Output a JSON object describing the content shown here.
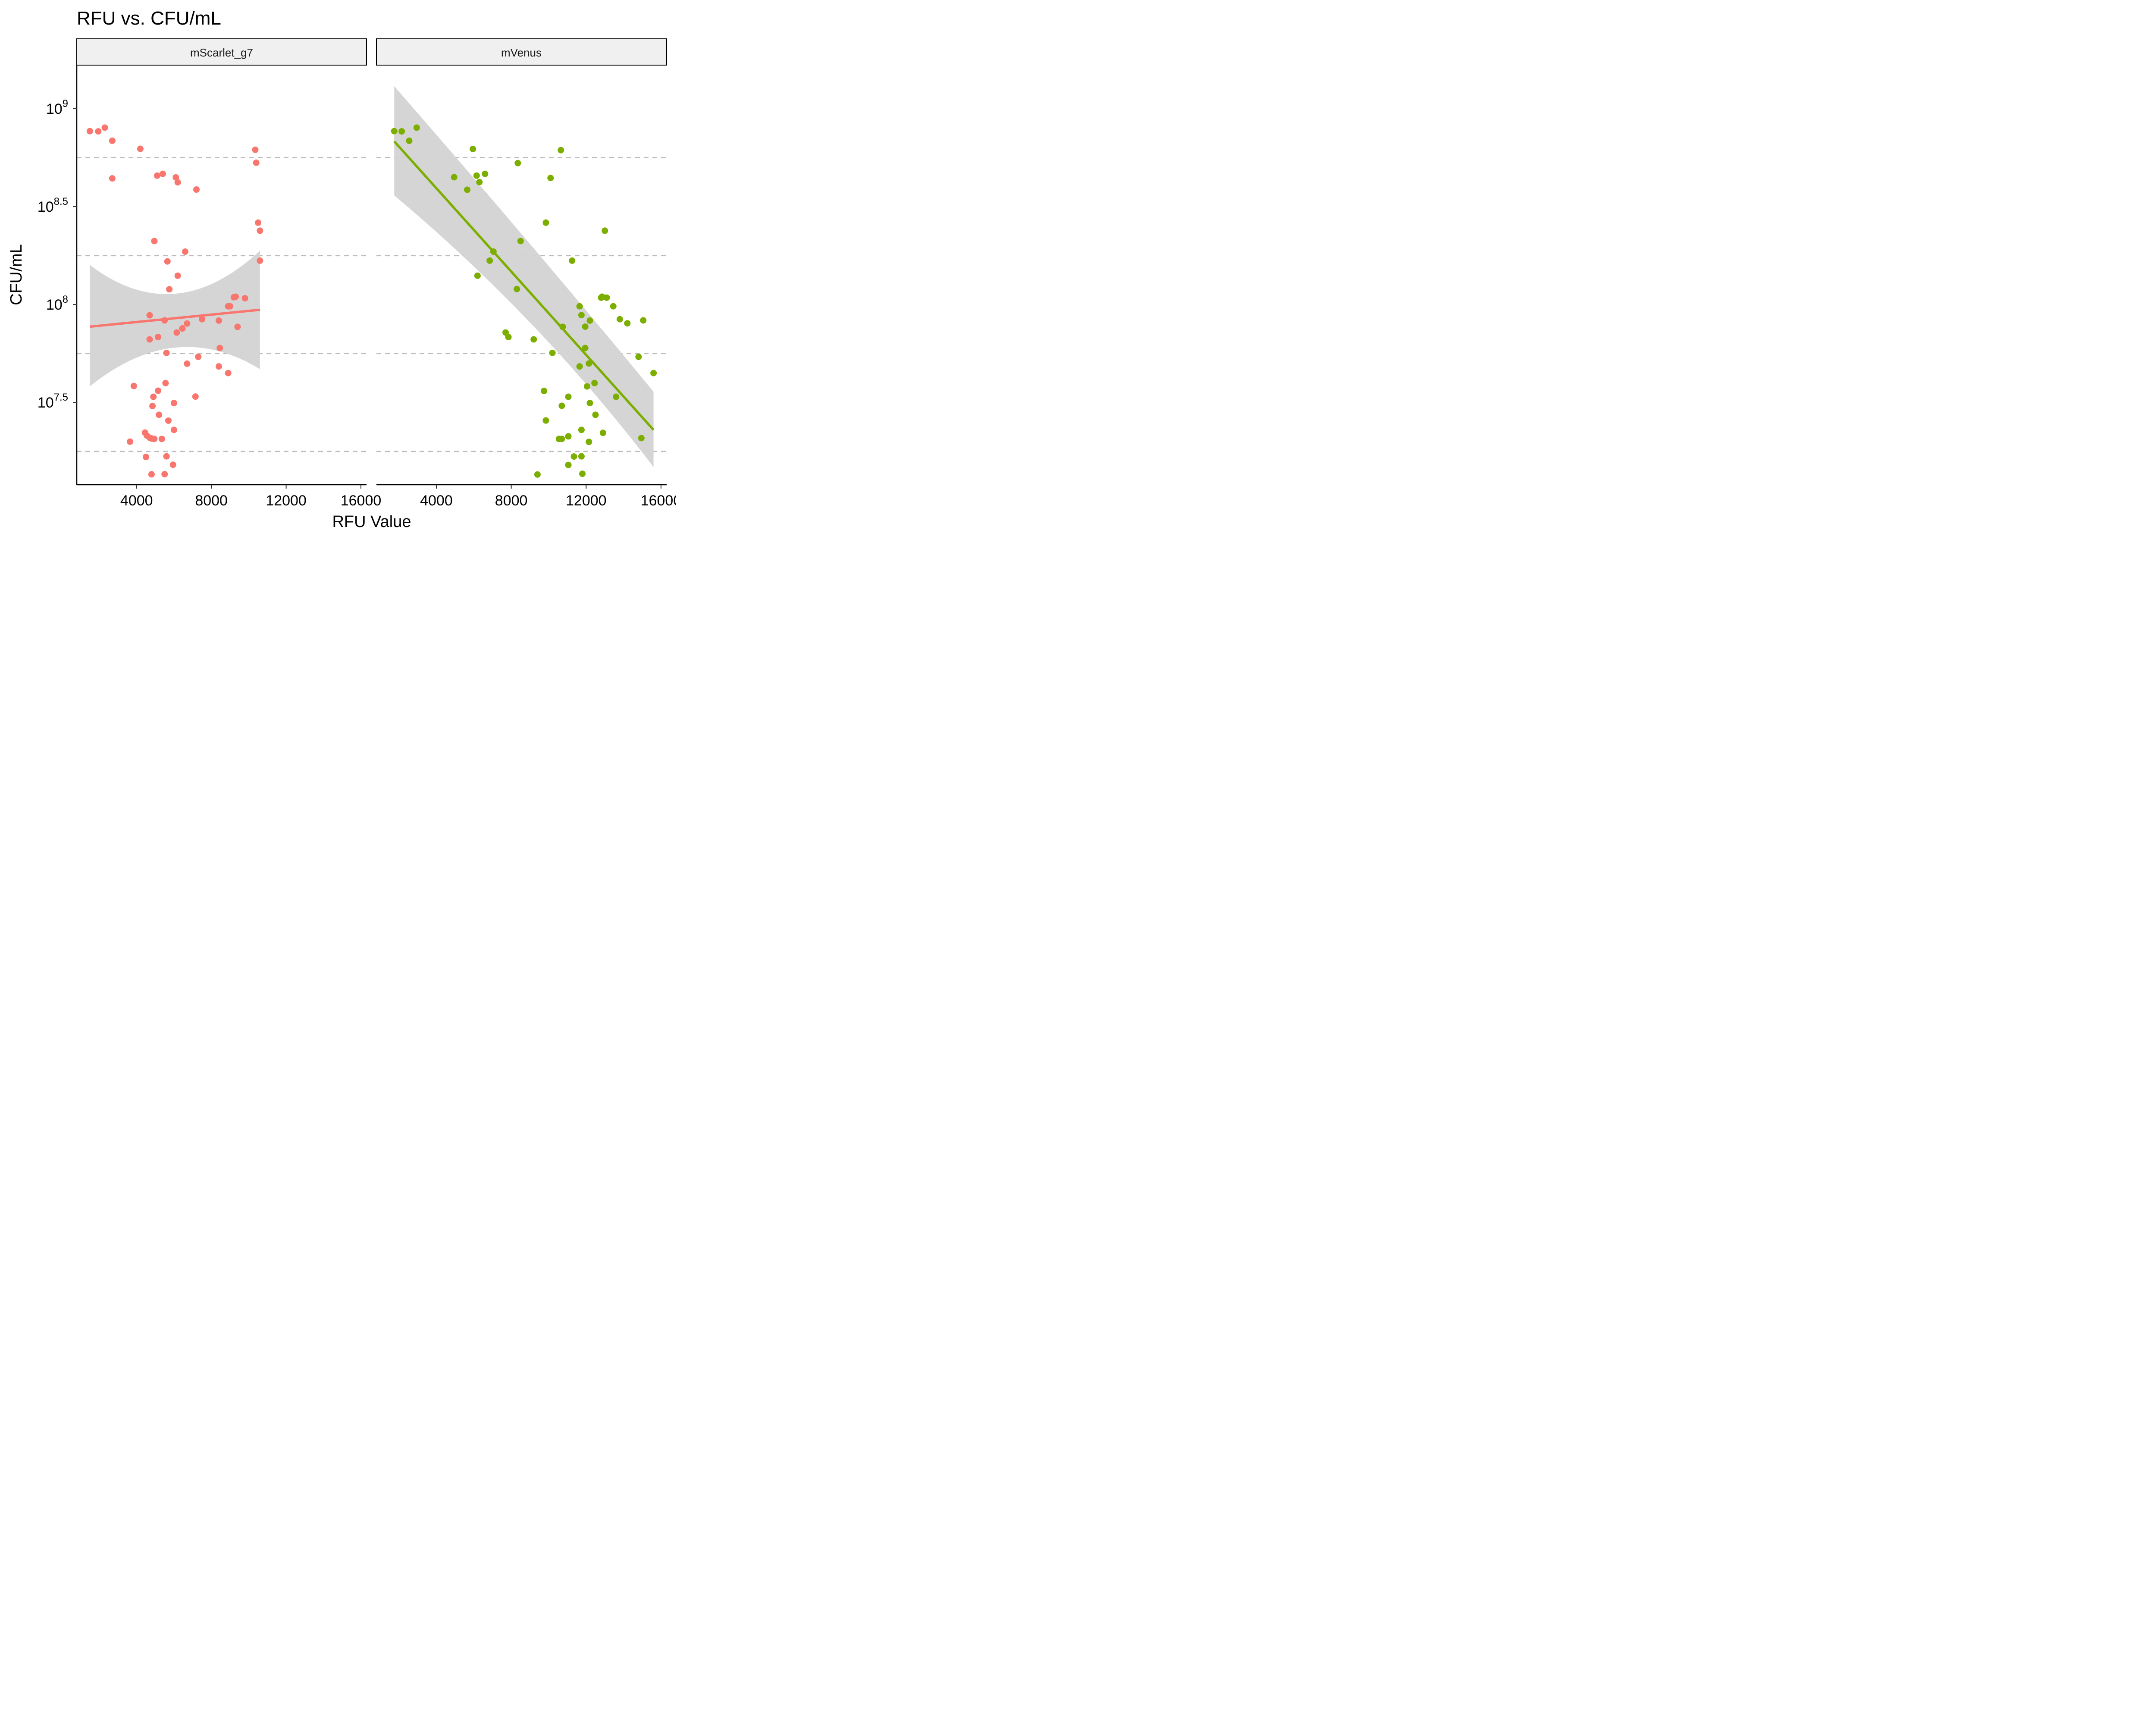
{
  "chart_data": {
    "type": "scatter",
    "title": "RFU vs. CFU/mL",
    "xlabel": "RFU Value",
    "ylabel": "CFU/mL",
    "xlim": [
      800,
      16300
    ],
    "ylim_log10": [
      7.08,
      9.22
    ],
    "x_ticks": [
      4000,
      8000,
      12000,
      16000
    ],
    "x_tick_labels": [
      "4000",
      "8000",
      "12000",
      "16000"
    ],
    "y_ticks": [
      {
        "value": 9.0,
        "base": "10",
        "exp": "9"
      },
      {
        "value": 8.5,
        "base": "10",
        "exp": "8.5"
      },
      {
        "value": 8.0,
        "base": "10",
        "exp": "8"
      },
      {
        "value": 7.5,
        "base": "10",
        "exp": "7.5"
      }
    ],
    "reference_lines_log10": [
      8.75,
      8.25,
      7.75,
      7.25
    ],
    "panels": [
      {
        "name": "mScarlet_g7",
        "color": "#F8766D",
        "points": [
          [
            1500,
            8.885
          ],
          [
            1950,
            8.884
          ],
          [
            2300,
            8.903
          ],
          [
            2700,
            8.836
          ],
          [
            2700,
            8.644
          ],
          [
            4200,
            8.795
          ],
          [
            5100,
            8.658
          ],
          [
            5400,
            8.667
          ],
          [
            6100,
            8.649
          ],
          [
            6200,
            8.624
          ],
          [
            7200,
            8.587
          ],
          [
            10350,
            8.79
          ],
          [
            10400,
            8.724
          ],
          [
            10500,
            8.418
          ],
          [
            10600,
            8.377
          ],
          [
            10600,
            8.224
          ],
          [
            4950,
            8.324
          ],
          [
            6600,
            8.27
          ],
          [
            5650,
            8.22
          ],
          [
            6200,
            8.147
          ],
          [
            5750,
            8.078
          ],
          [
            4700,
            7.945
          ],
          [
            5500,
            7.919
          ],
          [
            4700,
            7.822
          ],
          [
            5150,
            7.834
          ],
          [
            6150,
            7.857
          ],
          [
            6450,
            7.878
          ],
          [
            6700,
            7.903
          ],
          [
            7500,
            7.925
          ],
          [
            8400,
            7.918
          ],
          [
            9200,
            8.037
          ],
          [
            9300,
            8.04
          ],
          [
            9800,
            8.032
          ],
          [
            8900,
            7.991
          ],
          [
            9000,
            7.991
          ],
          [
            9400,
            7.886
          ],
          [
            5600,
            7.753
          ],
          [
            8450,
            7.778
          ],
          [
            7300,
            7.733
          ],
          [
            6700,
            7.698
          ],
          [
            8400,
            7.684
          ],
          [
            8900,
            7.65
          ],
          [
            5550,
            7.599
          ],
          [
            3850,
            7.584
          ],
          [
            5150,
            7.56
          ],
          [
            4900,
            7.529
          ],
          [
            7150,
            7.53
          ],
          [
            6000,
            7.497
          ],
          [
            4850,
            7.482
          ],
          [
            5200,
            7.437
          ],
          [
            5700,
            7.407
          ],
          [
            4450,
            7.346
          ],
          [
            6000,
            7.36
          ],
          [
            4550,
            7.331
          ],
          [
            4700,
            7.32
          ],
          [
            4800,
            7.316
          ],
          [
            4950,
            7.314
          ],
          [
            5350,
            7.314
          ],
          [
            3650,
            7.3
          ],
          [
            5600,
            7.225
          ],
          [
            4500,
            7.222
          ],
          [
            5950,
            7.182
          ],
          [
            4800,
            7.133
          ],
          [
            5500,
            7.134
          ]
        ],
        "fit": {
          "x": [
            1500,
            10600
          ],
          "y_log10": [
            7.887,
            7.973
          ],
          "ci_low_log10": [
            7.582,
            7.67
          ],
          "ci_high_log10": [
            8.202,
            8.275
          ]
        }
      },
      {
        "name": "mVenus",
        "color": "#7CAE00",
        "points": [
          [
            1750,
            8.885
          ],
          [
            2150,
            8.884
          ],
          [
            2550,
            8.836
          ],
          [
            2950,
            8.903
          ],
          [
            4950,
            8.65
          ],
          [
            5650,
            8.586
          ],
          [
            5950,
            8.794
          ],
          [
            6150,
            8.658
          ],
          [
            6300,
            8.625
          ],
          [
            6600,
            8.667
          ],
          [
            10650,
            8.788
          ],
          [
            8350,
            8.722
          ],
          [
            10100,
            8.646
          ],
          [
            9850,
            8.418
          ],
          [
            13000,
            8.377
          ],
          [
            8500,
            8.324
          ],
          [
            7050,
            8.27
          ],
          [
            6850,
            8.224
          ],
          [
            11250,
            8.224
          ],
          [
            6200,
            8.147
          ],
          [
            8300,
            8.079
          ],
          [
            12850,
            8.04
          ],
          [
            12800,
            8.035
          ],
          [
            13100,
            8.035
          ],
          [
            11650,
            7.991
          ],
          [
            13450,
            7.991
          ],
          [
            11750,
            7.946
          ],
          [
            13800,
            7.925
          ],
          [
            12200,
            7.918
          ],
          [
            14200,
            7.904
          ],
          [
            15050,
            7.919
          ],
          [
            11950,
            7.887
          ],
          [
            10750,
            7.886
          ],
          [
            7700,
            7.857
          ],
          [
            7850,
            7.834
          ],
          [
            9200,
            7.822
          ],
          [
            11950,
            7.778
          ],
          [
            10200,
            7.753
          ],
          [
            11650,
            7.684
          ],
          [
            12150,
            7.699
          ],
          [
            14800,
            7.733
          ],
          [
            15600,
            7.65
          ],
          [
            12450,
            7.599
          ],
          [
            12050,
            7.582
          ],
          [
            9750,
            7.559
          ],
          [
            11050,
            7.529
          ],
          [
            13600,
            7.529
          ],
          [
            12200,
            7.497
          ],
          [
            10700,
            7.483
          ],
          [
            12500,
            7.437
          ],
          [
            9850,
            7.408
          ],
          [
            11750,
            7.36
          ],
          [
            12900,
            7.345
          ],
          [
            11050,
            7.327
          ],
          [
            10550,
            7.314
          ],
          [
            10700,
            7.314
          ],
          [
            14950,
            7.318
          ],
          [
            12150,
            7.299
          ],
          [
            11350,
            7.224
          ],
          [
            11750,
            7.225
          ],
          [
            11050,
            7.181
          ],
          [
            9400,
            7.132
          ],
          [
            11800,
            7.136
          ]
        ],
        "fit": {
          "x": [
            1750,
            15600
          ],
          "y_log10": [
            8.833,
            7.36
          ],
          "ci_low_log10": [
            8.557,
            7.17
          ],
          "ci_high_log10": [
            9.115,
            7.555
          ]
        }
      }
    ]
  }
}
